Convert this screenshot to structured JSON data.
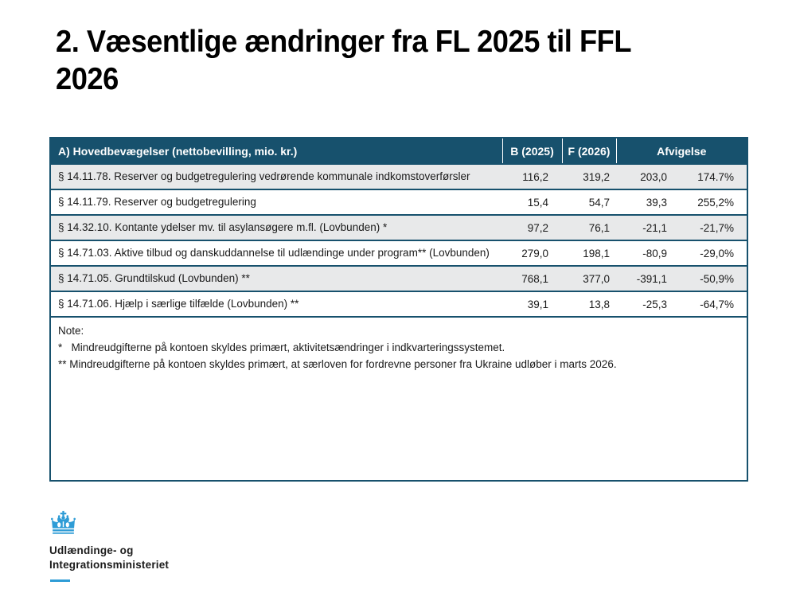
{
  "slide": {
    "title_line1": "2. Væsentlige ændringer fra FL 2025 til FFL",
    "title_line2": "2026"
  },
  "table": {
    "header": {
      "label": "A) Hovedbevægelser (nettobevilling, mio. kr.)",
      "col_b": "B (2025)",
      "col_f": "F (2026)",
      "col_afvigelse": "Afvigelse"
    },
    "rows": [
      {
        "label": "§ 14.11.78. Reserver og budgetregulering vedrørende kommunale indkomstoverførsler",
        "b2025": "116,2",
        "f2026": "319,2",
        "afv_abs": "203,0",
        "afv_pct": "174.7%"
      },
      {
        "label": "§ 14.11.79. Reserver og budgetregulering",
        "b2025": "15,4",
        "f2026": "54,7",
        "afv_abs": "39,3",
        "afv_pct": "255,2%"
      },
      {
        "label": "§ 14.32.10. Kontante ydelser mv. til asylansøgere m.fl. (Lovbunden) *",
        "b2025": "97,2",
        "f2026": "76,1",
        "afv_abs": "-21,1",
        "afv_pct": "-21,7%"
      },
      {
        "label": "§ 14.71.03. Aktive tilbud og danskuddannelse til udlændinge under program** (Lovbunden)",
        "b2025": "279,0",
        "f2026": "198,1",
        "afv_abs": "-80,9",
        "afv_pct": "-29,0%"
      },
      {
        "label": "§ 14.71.05. Grundtilskud (Lovbunden) **",
        "b2025": "768,1",
        "f2026": "377,0",
        "afv_abs": "-391,1",
        "afv_pct": "-50,9%"
      },
      {
        "label": "§ 14.71.06. Hjælp i særlige tilfælde (Lovbunden) **",
        "b2025": "39,1",
        "f2026": "13,8",
        "afv_abs": "-25,3",
        "afv_pct": "-64,7%"
      }
    ],
    "note": {
      "title": "Note:",
      "line1": "*   Mindreudgifterne på kontoen skyldes primært, aktivitetsændringer i indkvarteringssystemet.",
      "line2": "** Mindreudgifterne på kontoen skyldes primært, at særloven for fordrevne personer fra Ukraine udløber i marts 2026."
    }
  },
  "footer": {
    "ministry_line1": "Udlændinge- og",
    "ministry_line2": "Integrationsministeriet"
  },
  "colors": {
    "header_bg": "#17516D",
    "row_stripe": "#E8E9EA",
    "crown_blue": "#2E9CD6"
  }
}
